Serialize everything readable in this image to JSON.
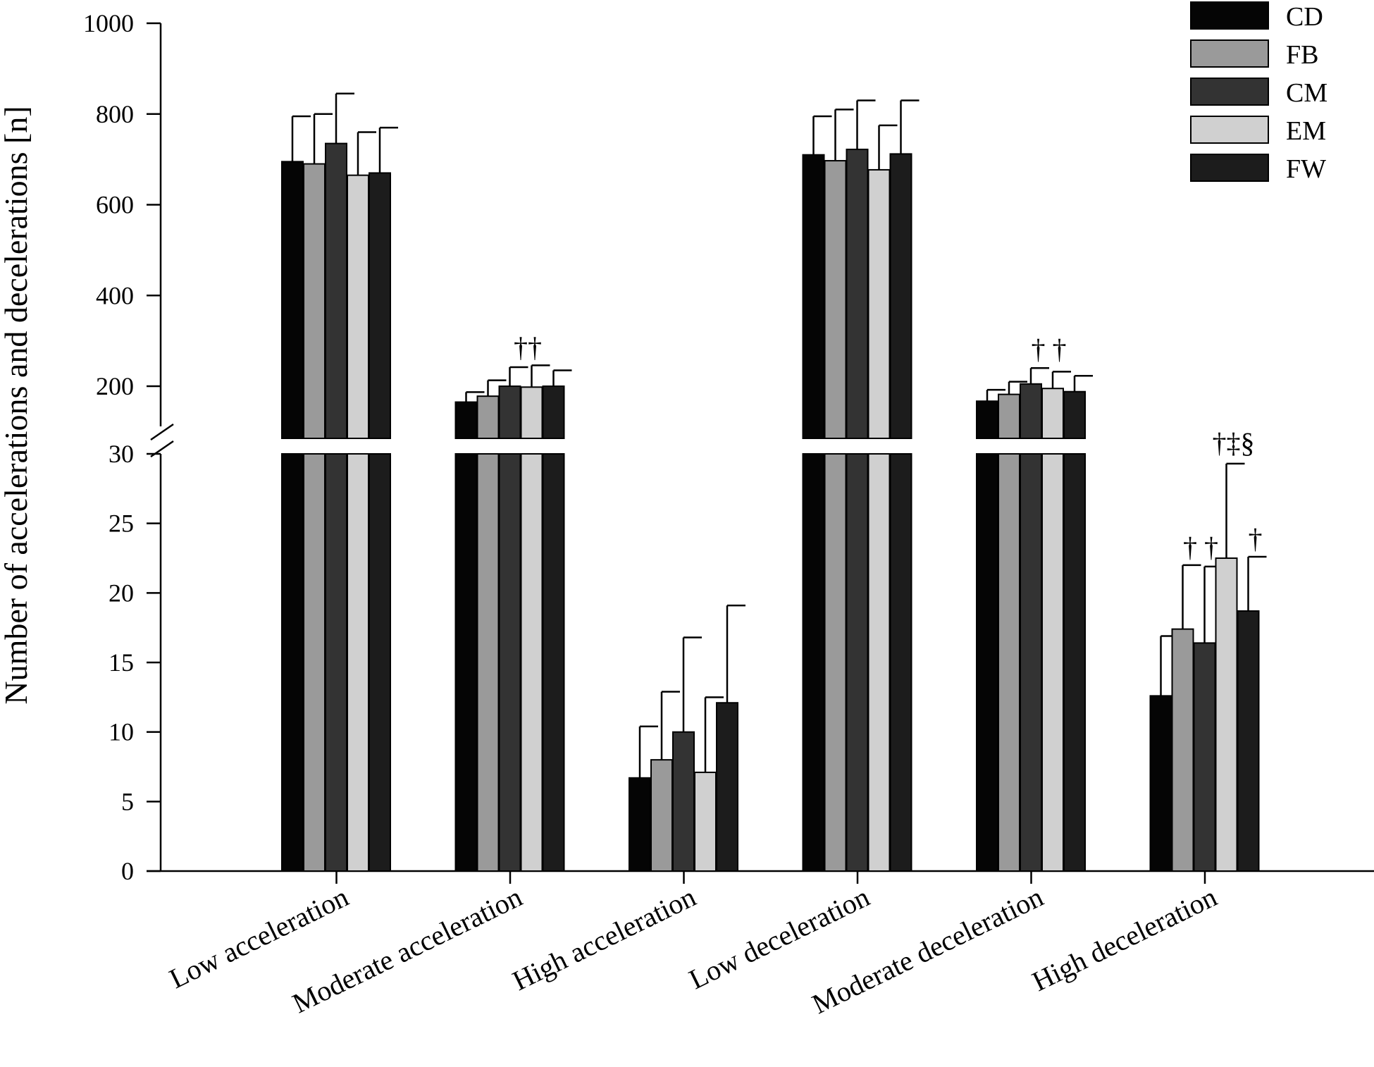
{
  "chart_data": {
    "type": "bar",
    "ylabel": "Number of accelerations and decelerations [n]",
    "categories": [
      "Low acceleration",
      "Moderate acceleration",
      "High acceleration",
      "Low deceleration",
      "Moderate deceleration",
      "High deceleration"
    ],
    "broken_axis": true,
    "y_upper_range": [
      100,
      1000
    ],
    "y_lower_range": [
      0,
      30
    ],
    "y_upper_ticks": [
      200,
      400,
      600,
      800,
      1000
    ],
    "y_lower_ticks": [
      0,
      5,
      10,
      15,
      20,
      25,
      30
    ],
    "legend_position": "top-right",
    "grid": false,
    "series": [
      {
        "name": "CD",
        "color": "#050505",
        "values": [
          695,
          165,
          6.7,
          710,
          167,
          12.6
        ],
        "errors": [
          100,
          22,
          3.7,
          85,
          25,
          4.3
        ]
      },
      {
        "name": "FB",
        "color": "#9a9a9a",
        "values": [
          690,
          178,
          8.0,
          697,
          182,
          17.4
        ],
        "errors": [
          110,
          35,
          4.9,
          113,
          28,
          4.6
        ]
      },
      {
        "name": "CM",
        "color": "#333333",
        "values": [
          735,
          200,
          10.0,
          722,
          205,
          16.4
        ],
        "errors": [
          110,
          42,
          6.8,
          108,
          35,
          5.5
        ]
      },
      {
        "name": "EM",
        "color": "#d0d0d0",
        "values": [
          665,
          198,
          7.1,
          677,
          195,
          22.5
        ],
        "errors": [
          95,
          48,
          5.4,
          98,
          37,
          6.8
        ]
      },
      {
        "name": "FW",
        "color": "#1c1c1c",
        "values": [
          670,
          200,
          12.1,
          712,
          188,
          18.7
        ],
        "errors": [
          100,
          35,
          7.0,
          118,
          35,
          3.9
        ]
      }
    ],
    "annotations": [
      {
        "category": 1,
        "series_span": [
          2,
          3
        ],
        "text": "††",
        "level": 246
      },
      {
        "category": 4,
        "series_span": [
          2,
          3
        ],
        "text": "† †",
        "level": 242
      },
      {
        "category": 5,
        "series_span": [
          1,
          2
        ],
        "text": "† †",
        "level": 22.0
      },
      {
        "category": 5,
        "series_span": [
          3,
          3
        ],
        "text": "†‡§",
        "level": 29.5
      },
      {
        "category": 5,
        "series_span": [
          4,
          4
        ],
        "text": "†",
        "level": 22.6
      }
    ]
  }
}
